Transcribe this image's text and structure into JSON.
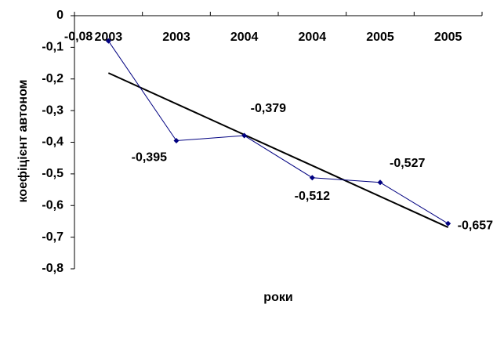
{
  "chart_data": {
    "type": "line",
    "x_label": "роки",
    "y_label": "коефіцієнт автоном",
    "categories": [
      "2003",
      "2003",
      "2004",
      "2004",
      "2005",
      "2005"
    ],
    "values": [
      -0.08,
      -0.395,
      -0.379,
      -0.512,
      -0.527,
      -0.657
    ],
    "value_labels": [
      "-0,08",
      "-0,395",
      "-0,379",
      "-0,512",
      "-0,527",
      "-0,657"
    ],
    "color": "#000080",
    "trendline": "linear",
    "trendline_color": "#000000",
    "ylim": [
      -0.8,
      0
    ],
    "yticks": [
      0,
      {
        "value": -0.1,
        "label": "-0,1"
      },
      {
        "value": -0.2,
        "label": "-0,2"
      },
      {
        "value": -0.3,
        "label": "-0,3"
      },
      {
        "value": -0.4,
        "label": "-0,4"
      },
      {
        "value": -0.5,
        "label": "-0,5"
      },
      {
        "value": -0.6,
        "label": "-0,6"
      },
      {
        "value": -0.7,
        "label": "-0,7"
      },
      {
        "value": -0.8,
        "label": "-0,8"
      }
    ]
  }
}
